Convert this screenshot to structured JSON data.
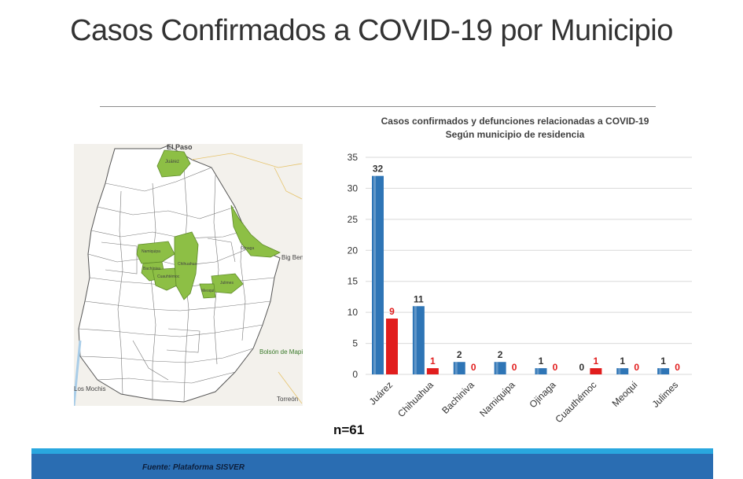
{
  "slide": {
    "title": "Casos Confirmados a COVID-19 por Municipio",
    "n_label": "n=61",
    "footer": "Fuente: Plataforma SISVER"
  },
  "map": {
    "labels": {
      "el_paso": "El Paso",
      "los_mochis": "Los Mochis",
      "torreon": "Torreón",
      "big_bend": "Big Bend",
      "bolson": "Bolsón de Mapimí",
      "juarez": "Juárez",
      "namiquipa": "Namiquipa",
      "bachiniva": "Bachíniva",
      "cuauhtemoc": "Cuauhtémoc",
      "chihuahua": "Chihuahua",
      "ojinaga": "Ojinaga",
      "julimes": "Julimes",
      "meoqui": "Meoqui"
    },
    "colors": {
      "highlight": "#8dbf45",
      "land": "#ffffff",
      "outside": "#f3f1ec"
    }
  },
  "chart_data": {
    "type": "bar",
    "title": "Casos confirmados y defunciones relacionadas a COVID-19",
    "subtitle": "Según municipio de residencia",
    "categories": [
      "Juárez",
      "Chihuahua",
      "Bachiniva",
      "Namiquipa",
      "Ojinaga",
      "Cuauthémoc",
      "Meoqui",
      "Julimes"
    ],
    "series": [
      {
        "values": [
          32,
          11,
          2,
          2,
          1,
          0,
          1,
          1
        ],
        "color": "#2e75b6"
      },
      {
        "values": [
          9,
          1,
          0,
          0,
          0,
          1,
          0,
          0
        ],
        "color": "#e11d1d"
      }
    ],
    "ylim": [
      0,
      35
    ],
    "yticks": [
      0,
      5,
      10,
      15,
      20,
      25,
      30,
      35
    ],
    "grid": true,
    "data_labels": true,
    "legend": "none"
  }
}
